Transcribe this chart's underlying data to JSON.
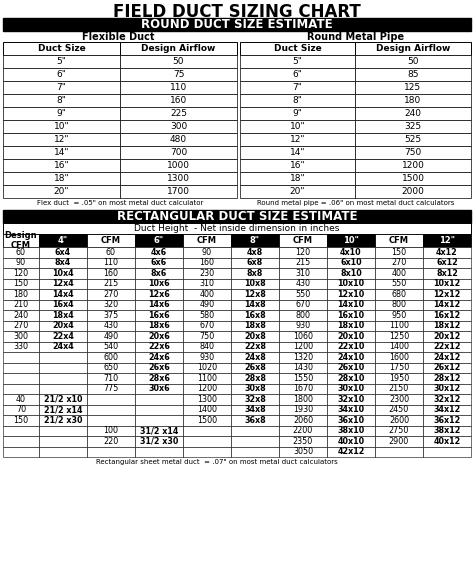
{
  "title": "FIELD DUCT SIZING CHART",
  "round_section_header": "ROUND DUCT SIZE ESTIMATE",
  "flex_duct_label": "Flexible Duct",
  "round_pipe_label": "Round Metal Pipe",
  "flex_duct_note": "Flex duct  = .05\" on most metal duct calculator",
  "round_pipe_note": "Round metal pipe = .06\" on most metal duct calculators",
  "rect_section_header": "RECTANGULAR DUCT SIZE ESTIMATE",
  "rect_note": "Rectangular sheet metal duct  = .07\" on most metal duct calculators",
  "round_headers": [
    "Duct Size",
    "Design Airflow"
  ],
  "flex_data": [
    [
      "5\"",
      "50"
    ],
    [
      "6\"",
      "75"
    ],
    [
      "7\"",
      "110"
    ],
    [
      "8\"",
      "160"
    ],
    [
      "9\"",
      "225"
    ],
    [
      "10\"",
      "300"
    ],
    [
      "12\"",
      "480"
    ],
    [
      "14\"",
      "700"
    ],
    [
      "16\"",
      "1000"
    ],
    [
      "18\"",
      "1300"
    ],
    [
      "20\"",
      "1700"
    ]
  ],
  "metal_data": [
    [
      "5\"",
      "50"
    ],
    [
      "6\"",
      "85"
    ],
    [
      "7\"",
      "125"
    ],
    [
      "8\"",
      "180"
    ],
    [
      "9\"",
      "240"
    ],
    [
      "10\"",
      "325"
    ],
    [
      "12\"",
      "525"
    ],
    [
      "14\"",
      "750"
    ],
    [
      "16\"",
      "1200"
    ],
    [
      "18\"",
      "1500"
    ],
    [
      "20\"",
      "2000"
    ]
  ],
  "rect_col_header_row1": "Duct Height  - Net inside dimension in inches",
  "rect_col_header_row2": [
    "Design\nCFM",
    "4\"",
    "CFM",
    "6\"",
    "CFM",
    "8\"",
    "CFM",
    "10\"",
    "CFM",
    "12\""
  ],
  "rect_data": [
    [
      "60",
      "6x4",
      "60",
      "4x6",
      "90",
      "4x8",
      "120",
      "4x10",
      "150",
      "4x12"
    ],
    [
      "90",
      "8x4",
      "110",
      "6x6",
      "160",
      "6x8",
      "215",
      "6x10",
      "270",
      "6x12"
    ],
    [
      "120",
      "10x4",
      "160",
      "8x6",
      "230",
      "8x8",
      "310",
      "8x10",
      "400",
      "8x12"
    ],
    [
      "150",
      "12x4",
      "215",
      "10x6",
      "310",
      "10x8",
      "430",
      "10x10",
      "550",
      "10x12"
    ],
    [
      "180",
      "14x4",
      "270",
      "12x6",
      "400",
      "12x8",
      "550",
      "12x10",
      "680",
      "12x12"
    ],
    [
      "210",
      "16x4",
      "320",
      "14x6",
      "490",
      "14x8",
      "670",
      "14x10",
      "800",
      "14x12"
    ],
    [
      "240",
      "18x4",
      "375",
      "16x6",
      "580",
      "16x8",
      "800",
      "16x10",
      "950",
      "16x12"
    ],
    [
      "270",
      "20x4",
      "430",
      "18x6",
      "670",
      "18x8",
      "930",
      "18x10",
      "1100",
      "18x12"
    ],
    [
      "300",
      "22x4",
      "490",
      "20x6",
      "750",
      "20x8",
      "1060",
      "20x10",
      "1250",
      "20x12"
    ],
    [
      "330",
      "24x4",
      "540",
      "22x6",
      "840",
      "22x8",
      "1200",
      "22x10",
      "1400",
      "22x12"
    ],
    [
      "",
      "",
      "600",
      "24x6",
      "930",
      "24x8",
      "1320",
      "24x10",
      "1600",
      "24x12"
    ],
    [
      "",
      "",
      "650",
      "26x6",
      "1020",
      "26x8",
      "1430",
      "26x10",
      "1750",
      "26x12"
    ],
    [
      "",
      "",
      "710",
      "28x6",
      "1100",
      "28x8",
      "1550",
      "28x10",
      "1950",
      "28x12"
    ],
    [
      "",
      "",
      "775",
      "30x6",
      "1200",
      "30x8",
      "1670",
      "30x10",
      "2150",
      "30x12"
    ],
    [
      "40",
      "21/2 x10",
      "",
      "",
      "1300",
      "32x8",
      "1800",
      "32x10",
      "2300",
      "32x12"
    ],
    [
      "70",
      "21/2 x14",
      "",
      "",
      "1400",
      "34x8",
      "1930",
      "34x10",
      "2450",
      "34x12"
    ],
    [
      "150",
      "21/2 x30",
      "",
      "",
      "1500",
      "36x8",
      "2060",
      "36x10",
      "2600",
      "36x12"
    ],
    [
      "",
      "",
      "100",
      "31/2 x14",
      "",
      "",
      "2200",
      "38x10",
      "2750",
      "38x12"
    ],
    [
      "",
      "",
      "220",
      "31/2 x30",
      "",
      "",
      "2350",
      "40x10",
      "2900",
      "40x12"
    ],
    [
      "",
      "",
      "",
      "",
      "",
      "",
      "3050",
      "42x12",
      "",
      ""
    ]
  ],
  "bg_color": "#ffffff",
  "bold_duct_cols": [
    1,
    3,
    5,
    7,
    9
  ]
}
